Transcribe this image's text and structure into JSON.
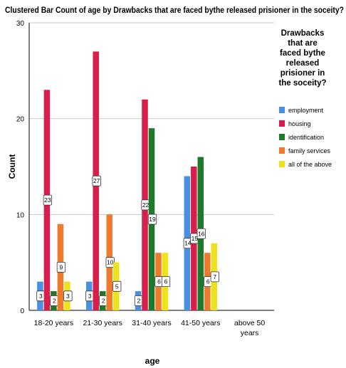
{
  "chart_data": {
    "type": "bar",
    "title": "Clustered Bar Count of age by Drawbacks that are faced bythe released prisioner in the soceity?",
    "xlabel": "age",
    "ylabel": "Count",
    "ylim": [
      0,
      30
    ],
    "yticks": [
      0,
      10,
      20,
      30
    ],
    "grid": true,
    "legend_position": "right",
    "legend_title": "Drawbacks that are faced bythe released prisioner in the soceity?",
    "legend_title_lines": [
      "Drawbacks",
      "that are",
      "faced bythe",
      "released",
      "prisioner in",
      "the soceity?"
    ],
    "categories": [
      "18-20 years",
      "21-30 years",
      "31-40 years",
      "41-50 years",
      "above 50 years"
    ],
    "category_lines": [
      [
        "18-20 years"
      ],
      [
        "21-30 years"
      ],
      [
        "31-40 years"
      ],
      [
        "41-50 years"
      ],
      [
        "above 50",
        "years"
      ]
    ],
    "series": [
      {
        "name": "employment",
        "color": "#4a90e2",
        "values": [
          3,
          3,
          2,
          14,
          null
        ]
      },
      {
        "name": "housing",
        "color": "#d61f4a",
        "values": [
          23,
          27,
          22,
          15,
          null
        ]
      },
      {
        "name": "identification",
        "color": "#1e7a2a",
        "values": [
          2,
          2,
          19,
          16,
          null
        ]
      },
      {
        "name": "family services",
        "color": "#f07a2c",
        "values": [
          9,
          10,
          6,
          6,
          null
        ]
      },
      {
        "name": "all of the above",
        "color": "#eee21c",
        "values": [
          3,
          5,
          6,
          7,
          null
        ]
      }
    ]
  }
}
